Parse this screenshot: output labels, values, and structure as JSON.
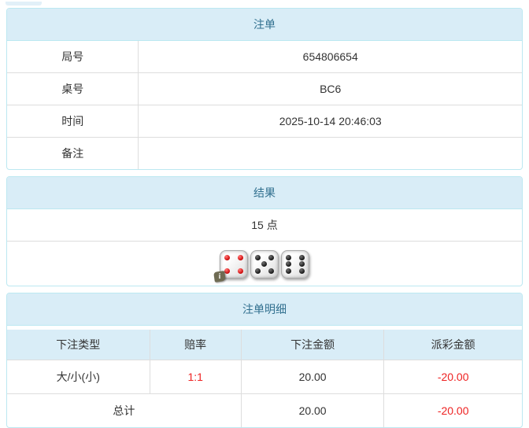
{
  "theme": {
    "panel_border": "#bce8f1",
    "heading_bg": "#d9edf7",
    "heading_text": "#31708f",
    "cell_border": "#dddddd",
    "body_text": "#333333",
    "negative_text": "#ee2222"
  },
  "bet_order": {
    "title": "注单",
    "rows": [
      {
        "label": "局号",
        "value": "654806654"
      },
      {
        "label": "桌号",
        "value": "BC6"
      },
      {
        "label": "时间",
        "value": "2025-10-14 20:46:03"
      },
      {
        "label": "备注",
        "value": ""
      }
    ]
  },
  "result": {
    "title": "结果",
    "points": "15 点",
    "dice": [
      {
        "value": 4,
        "pip_color": "red"
      },
      {
        "value": 5,
        "pip_color": "black"
      },
      {
        "value": 6,
        "pip_color": "black"
      }
    ],
    "info_badge": "i"
  },
  "bet_detail": {
    "title": "注单明细",
    "columns": [
      "下注类型",
      "赔率",
      "下注金额",
      "派彩金额"
    ],
    "rows": [
      {
        "bet_type": "大/小(小)",
        "odds": "1:1",
        "bet_amount": "20.00",
        "payout": "-20.00"
      }
    ],
    "total": {
      "label": "总计",
      "bet_amount": "20.00",
      "payout": "-20.00"
    }
  }
}
